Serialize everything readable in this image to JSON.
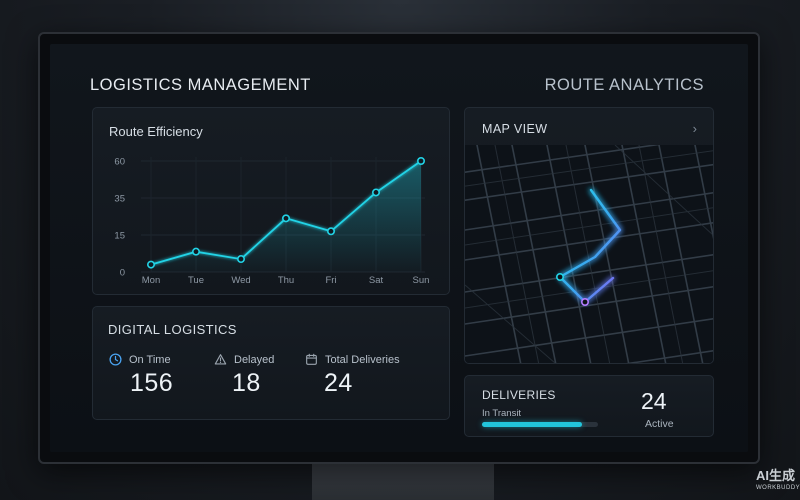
{
  "header": {
    "left_title": "LOGISTICS MANAGEMENT",
    "right_title": "ROUTE ANALYTICS"
  },
  "route_panel": {
    "title": "Route Efficiency"
  },
  "chart_data": {
    "type": "area",
    "title": "Route Efficiency",
    "categories": [
      "Mon",
      "Tue",
      "Wed",
      "Thu",
      "Fri",
      "Sat",
      "Sun"
    ],
    "values": [
      4,
      11,
      7,
      29,
      22,
      43,
      60
    ],
    "y_ticks": [
      "60",
      "35",
      "15",
      "0"
    ],
    "ylim": [
      0,
      60
    ],
    "xlabel": "",
    "ylabel": "",
    "line_color": "#22d3e6",
    "grid": true
  },
  "digital_panel": {
    "title": "DIGITAL LOGISTICS",
    "stats": [
      {
        "label": "On Time",
        "value": "156",
        "icon": "clock-icon"
      },
      {
        "label": "Delayed",
        "value": "18",
        "icon": "warning-icon"
      },
      {
        "label": "Total Deliveries",
        "value": "24",
        "icon": "calendar-icon"
      }
    ]
  },
  "map_panel": {
    "title": "MAP VIEW",
    "chevron": "›"
  },
  "deliveries_panel": {
    "title": "DELIVERIES",
    "transit_label": "In Transit",
    "transit_progress": 0.86,
    "active_count": "24",
    "active_label": "Active"
  },
  "colors": {
    "accent_cyan": "#22d3e6",
    "accent_purple": "#8b5cf6",
    "panel_bg": "#161c23"
  },
  "watermark": {
    "main": "AI生成",
    "sub": "WORKBUDDY"
  }
}
